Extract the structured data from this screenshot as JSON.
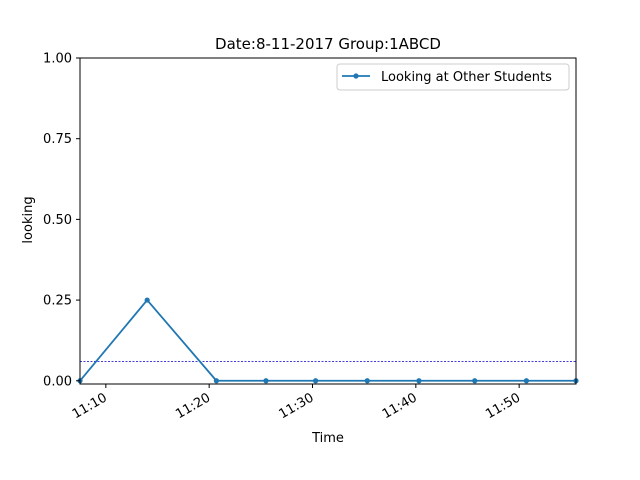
{
  "chart_data": {
    "type": "line",
    "title": "Date:8-11-2017  Group:1ABCD",
    "xlabel": "Time",
    "ylabel": "looking",
    "xlim": [
      "11:07.5",
      "11:55.5"
    ],
    "ylim": [
      -0.01,
      1.0
    ],
    "x_ticks": [
      "11:10",
      "11:20",
      "11:30",
      "11:40",
      "11:50"
    ],
    "y_ticks": [
      "0.00",
      "0.25",
      "0.50",
      "0.75",
      "1.00"
    ],
    "grid": false,
    "legend_position": "top-right",
    "series": [
      {
        "name": "Looking at Other Students",
        "color": "#1f77b4",
        "x": [
          "11:07.5",
          "11:14",
          "11:20.7",
          "11:25.5",
          "11:30.3",
          "11:35.3",
          "11:40.3",
          "11:45.7",
          "11:50.7",
          "11:55.5"
        ],
        "y": [
          0,
          0.25,
          0,
          0,
          0,
          0,
          0,
          0,
          0,
          0
        ]
      }
    ],
    "reference_line": {
      "y": 0.06,
      "color": "#0000cc",
      "style": "dashed"
    }
  }
}
